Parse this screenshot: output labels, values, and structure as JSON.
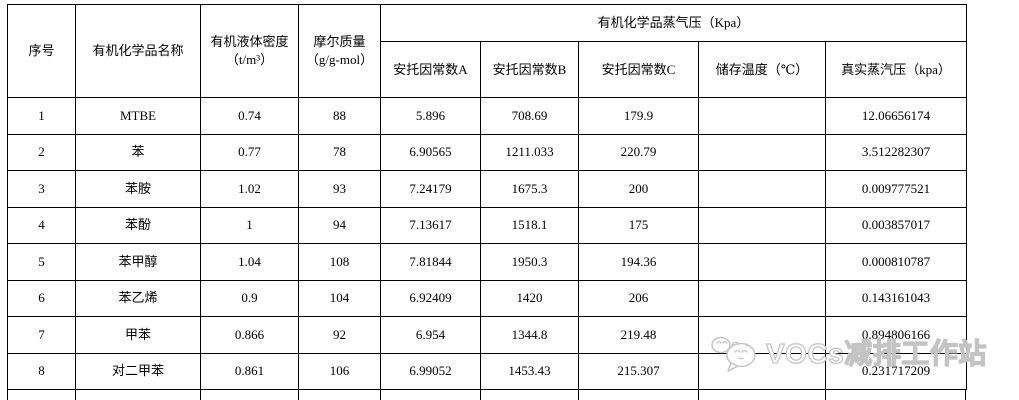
{
  "watermark": {
    "text": "VOCs减排工作站"
  },
  "table": {
    "header": {
      "col_seq": "序号",
      "col_name": "有机化学品名称",
      "col_density_l1": "有机液体密度",
      "col_density_l2": "（t/m³）",
      "col_molar_l1": "摩尔质量",
      "col_molar_l2": "（g/g-mol）",
      "group_vapor": "有机化学品蒸气压（Kpa）",
      "col_antoine_a": "安托因常数A",
      "col_antoine_b": "安托因常数B",
      "col_antoine_c": "安托因常数C",
      "col_storage_temp": "储存温度（℃）",
      "col_true_vp": "真实蒸汽压（kpa）"
    },
    "rows": [
      [
        "1",
        "MTBE",
        "0.74",
        "88",
        "5.896",
        "708.69",
        "179.9",
        "",
        "12.06656174"
      ],
      [
        "2",
        "苯",
        "0.77",
        "78",
        "6.90565",
        "1211.033",
        "220.79",
        "",
        "3.512282307"
      ],
      [
        "3",
        "苯胺",
        "1.02",
        "93",
        "7.24179",
        "1675.3",
        "200",
        "",
        "0.009777521"
      ],
      [
        "4",
        "苯酚",
        "1",
        "94",
        "7.13617",
        "1518.1",
        "175",
        "",
        "0.003857017"
      ],
      [
        "5",
        "苯甲醇",
        "1.04",
        "108",
        "7.81844",
        "1950.3",
        "194.36",
        "",
        "0.000810787"
      ],
      [
        "6",
        "苯乙烯",
        "0.9",
        "104",
        "6.92409",
        "1420",
        "206",
        "",
        "0.143161043"
      ],
      [
        "7",
        "甲苯",
        "0.866",
        "92",
        "6.954",
        "1344.8",
        "219.48",
        "",
        "0.894806166"
      ],
      [
        "8",
        "对二甲苯",
        "0.861",
        "106",
        "6.99052",
        "1453.43",
        "215.307",
        "",
        "0.231717209"
      ]
    ]
  }
}
